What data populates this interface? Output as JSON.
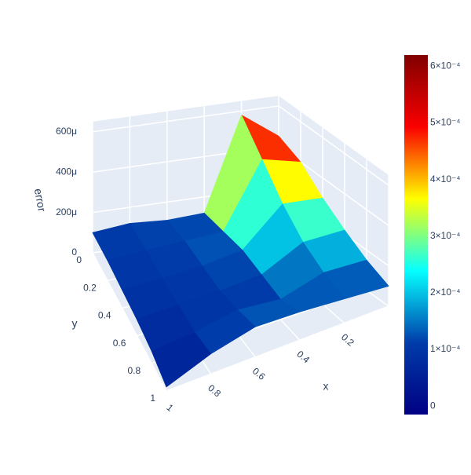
{
  "chart_data": {
    "type": "surface",
    "x": [
      0,
      0.2,
      0.4,
      0.6,
      0.8,
      1
    ],
    "y": [
      0,
      0.2,
      0.4,
      0.6,
      0.8,
      1
    ],
    "z": [
      [
        0.00045,
        0.00058,
        0.00012,
        0.00011,
        0.00012,
        0.0001
      ],
      [
        0.0004,
        0.00045,
        0.00013,
        0.00012,
        0.00011,
        0.0001
      ],
      [
        0.0003,
        0.00032,
        0.00014,
        0.00011,
        0.0001,
        9e-05
      ],
      [
        0.00022,
        0.00022,
        0.00012,
        0.0001,
        9e-05,
        8e-05
      ],
      [
        0.00015,
        0.00016,
        0.0001,
        0.00012,
        8e-05,
        6e-05
      ],
      [
        0.0001,
        0.00012,
        0.00014,
        0.00015,
        0.0001,
        2e-05
      ]
    ],
    "xlabel": "x",
    "ylabel": "y",
    "zlabel": "error",
    "xlim": [
      0,
      1
    ],
    "ylim": [
      0,
      1
    ],
    "zlim": [
      0,
      0.00065
    ],
    "xticks": [
      0.2,
      0.4,
      0.6,
      0.8,
      1
    ],
    "yticks": [
      0,
      0.2,
      0.4,
      0.6,
      0.8,
      1
    ],
    "zticks": [
      0,
      {
        "value": 0.0002,
        "label": "200μ"
      },
      {
        "value": 0.0004,
        "label": "400μ"
      },
      {
        "value": 0.0006,
        "label": "600μ"
      }
    ],
    "colorscale": [
      "#000083",
      "#003caa",
      "#05ffff",
      "#ffff00",
      "#fa0000",
      "#800000"
    ],
    "clim": [
      -1.5e-05,
      0.00062
    ],
    "colorbar_ticks": [
      0,
      {
        "value": 0.0001,
        "label": "1×10⁻⁴"
      },
      {
        "value": 0.0002,
        "label": "2×10⁻⁴"
      },
      {
        "value": 0.0003,
        "label": "3×10⁻⁴"
      },
      {
        "value": 0.0004,
        "label": "4×10⁻⁴"
      },
      {
        "value": 0.0005,
        "label": "5×10⁻⁴"
      },
      {
        "value": 0.0006,
        "label": "6×10⁻⁴"
      }
    ],
    "grid": true
  }
}
